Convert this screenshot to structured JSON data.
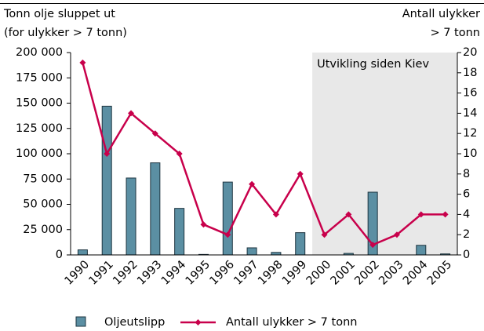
{
  "chart_data": {
    "type": "bar_line",
    "y_label": [
      "Tonn olje sluppet ut",
      "(for ulykker > 7 tonn)"
    ],
    "y2_label": [
      "Antall ulykker",
      "> 7 tonn"
    ],
    "annotation": "Utvikling siden Kiev",
    "categories": [
      "1990",
      "1991",
      "1992",
      "1993",
      "1994",
      "1995",
      "1996",
      "1997",
      "1998",
      "1999",
      "2000",
      "2001",
      "2002",
      "2003",
      "2004",
      "2005"
    ],
    "series": [
      {
        "name": "Oljeutslipp",
        "type": "bar",
        "color": "#5b8fa3",
        "values": [
          5000,
          147000,
          76000,
          91000,
          46000,
          500,
          72000,
          7000,
          2500,
          22000,
          0,
          1500,
          62000,
          0,
          9500,
          1000
        ]
      },
      {
        "name": "Antall ulykker > 7 tonn",
        "type": "line",
        "axis": "y2",
        "color": "#c8004b",
        "values": [
          19,
          10,
          14,
          12,
          10,
          3,
          2,
          7,
          4,
          8,
          2,
          4,
          1,
          2,
          4,
          4
        ]
      }
    ],
    "ylim": [
      0,
      200000
    ],
    "yticks": [
      0,
      {
        "value": 25000,
        "label": "25 000"
      },
      {
        "value": 50000,
        "label": "50 000"
      },
      {
        "value": 75000,
        "label": "75 000"
      },
      {
        "value": 100000,
        "label": "100 000"
      },
      {
        "value": 125000,
        "label": "125 000"
      },
      {
        "value": 150000,
        "label": "150 000"
      },
      {
        "value": 175000,
        "label": "175 000"
      },
      {
        "value": 200000,
        "label": "200 000"
      }
    ],
    "y2lim": [
      0,
      20
    ],
    "y2ticks": [
      0,
      2,
      4,
      6,
      8,
      10,
      12,
      14,
      16,
      18,
      20
    ]
  }
}
